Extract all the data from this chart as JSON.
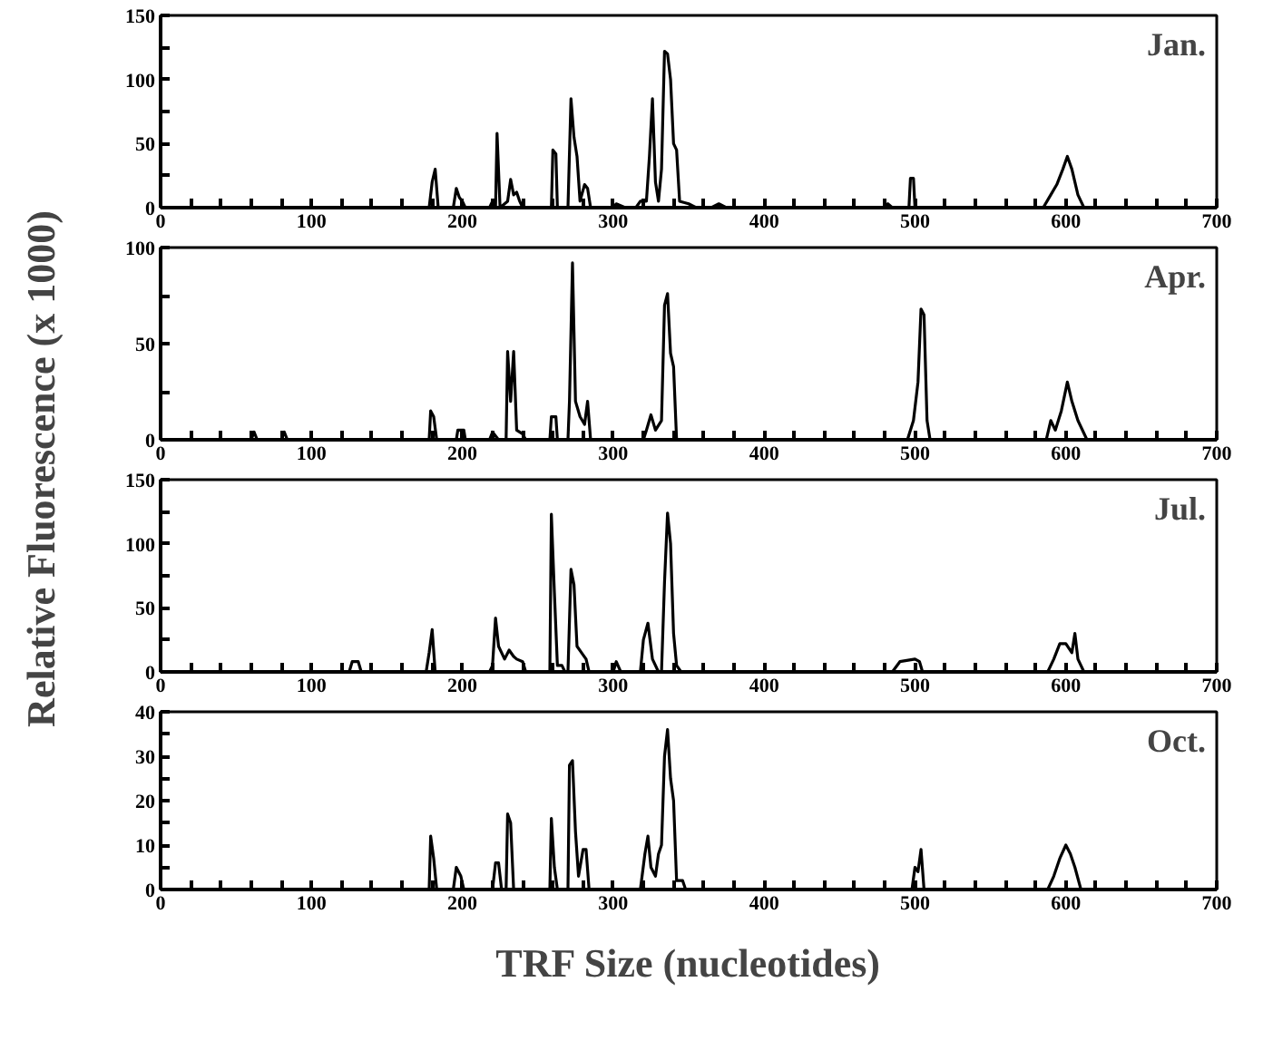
{
  "chart_data": [
    {
      "type": "line",
      "title": "Jan.",
      "ylabel": "Relative Fluorescence (x 1000)",
      "grid": false,
      "xlim": [
        0,
        700
      ],
      "ylim": [
        0,
        150
      ],
      "xticks": [
        0,
        {
          "value": 20,
          "label": null
        },
        {
          "value": 40,
          "label": null
        },
        {
          "value": 60,
          "label": null
        },
        {
          "value": 80,
          "label": null
        },
        100,
        {
          "value": 120,
          "label": null
        },
        {
          "value": 140,
          "label": null
        },
        {
          "value": 160,
          "label": null
        },
        {
          "value": 180,
          "label": null
        },
        200,
        {
          "value": 220,
          "label": null
        },
        {
          "value": 240,
          "label": null
        },
        {
          "value": 260,
          "label": null
        },
        {
          "value": 280,
          "label": null
        },
        300,
        {
          "value": 320,
          "label": null
        },
        {
          "value": 340,
          "label": null
        },
        {
          "value": 360,
          "label": null
        },
        {
          "value": 380,
          "label": null
        },
        400,
        {
          "value": 420,
          "label": null
        },
        {
          "value": 440,
          "label": null
        },
        {
          "value": 460,
          "label": null
        },
        {
          "value": 480,
          "label": null
        },
        500,
        {
          "value": 520,
          "label": null
        },
        {
          "value": 540,
          "label": null
        },
        {
          "value": 560,
          "label": null
        },
        {
          "value": 580,
          "label": null
        },
        600,
        {
          "value": 620,
          "label": null
        },
        {
          "value": 640,
          "label": null
        },
        {
          "value": 660,
          "label": null
        },
        {
          "value": 680,
          "label": null
        },
        700
      ],
      "yticks": [
        0,
        {
          "value": 25,
          "label": null
        },
        50,
        {
          "value": 75,
          "label": null
        },
        100,
        {
          "value": 125,
          "label": null
        },
        150
      ],
      "series": [
        {
          "color": "#000000",
          "x": [
            0,
            178,
            180,
            182,
            184,
            194,
            196,
            198,
            200,
            202,
            218,
            220,
            222,
            223,
            225,
            230,
            232,
            234,
            236,
            238,
            240,
            259,
            260,
            262,
            263,
            270,
            272,
            274,
            276,
            278,
            281,
            283,
            285,
            300,
            302,
            308,
            315,
            318,
            322,
            324,
            326,
            328,
            330,
            332,
            334,
            336,
            338,
            340,
            342,
            344,
            350,
            355,
            365,
            370,
            375,
            480,
            482,
            485,
            496,
            497,
            499,
            500,
            585,
            590,
            594,
            598,
            601,
            604,
            608,
            612,
            700
          ],
          "values": [
            0,
            0,
            20,
            30,
            0,
            0,
            15,
            8,
            5,
            0,
            0,
            5,
            0,
            58,
            0,
            5,
            22,
            10,
            12,
            5,
            0,
            0,
            45,
            42,
            0,
            0,
            85,
            55,
            40,
            5,
            18,
            15,
            0,
            0,
            3,
            0,
            0,
            5,
            5,
            40,
            85,
            20,
            5,
            30,
            122,
            120,
            100,
            50,
            45,
            5,
            3,
            0,
            0,
            3,
            0,
            0,
            3,
            0,
            0,
            23,
            23,
            0,
            0,
            10,
            18,
            30,
            40,
            30,
            10,
            0,
            0
          ]
        }
      ]
    },
    {
      "type": "line",
      "title": "Apr.",
      "grid": false,
      "xlim": [
        0,
        700
      ],
      "ylim": [
        0,
        100
      ],
      "xticks": [
        0,
        {
          "value": 20,
          "label": null
        },
        {
          "value": 40,
          "label": null
        },
        {
          "value": 60,
          "label": null
        },
        {
          "value": 80,
          "label": null
        },
        100,
        {
          "value": 120,
          "label": null
        },
        {
          "value": 140,
          "label": null
        },
        {
          "value": 160,
          "label": null
        },
        {
          "value": 180,
          "label": null
        },
        200,
        {
          "value": 220,
          "label": null
        },
        {
          "value": 240,
          "label": null
        },
        {
          "value": 260,
          "label": null
        },
        {
          "value": 280,
          "label": null
        },
        300,
        {
          "value": 320,
          "label": null
        },
        {
          "value": 340,
          "label": null
        },
        {
          "value": 360,
          "label": null
        },
        {
          "value": 380,
          "label": null
        },
        400,
        {
          "value": 420,
          "label": null
        },
        {
          "value": 440,
          "label": null
        },
        {
          "value": 460,
          "label": null
        },
        {
          "value": 480,
          "label": null
        },
        500,
        {
          "value": 520,
          "label": null
        },
        {
          "value": 540,
          "label": null
        },
        {
          "value": 560,
          "label": null
        },
        {
          "value": 580,
          "label": null
        },
        600,
        {
          "value": 620,
          "label": null
        },
        {
          "value": 640,
          "label": null
        },
        {
          "value": 660,
          "label": null
        },
        {
          "value": 680,
          "label": null
        },
        700
      ],
      "yticks": [
        0,
        {
          "value": 25,
          "label": null
        },
        50,
        {
          "value": 75,
          "label": null
        },
        100
      ],
      "series": [
        {
          "color": "#000000",
          "x": [
            0,
            60,
            62,
            64,
            80,
            82,
            84,
            178,
            179,
            181,
            183,
            196,
            197,
            201,
            202,
            218,
            220,
            224,
            229,
            230,
            232,
            234,
            236,
            240,
            242,
            258,
            259,
            262,
            263,
            270,
            271,
            273,
            275,
            278,
            281,
            283,
            285,
            320,
            322,
            325,
            328,
            332,
            334,
            336,
            338,
            340,
            342,
            495,
            499,
            502,
            504,
            506,
            508,
            510,
            587,
            590,
            593,
            597,
            601,
            604,
            608,
            614,
            700
          ],
          "values": [
            0,
            0,
            4,
            0,
            0,
            4,
            0,
            0,
            15,
            12,
            0,
            0,
            5,
            5,
            0,
            0,
            4,
            0,
            0,
            46,
            20,
            46,
            5,
            3,
            0,
            0,
            12,
            12,
            0,
            0,
            20,
            92,
            20,
            12,
            8,
            20,
            0,
            0,
            5,
            13,
            5,
            10,
            70,
            76,
            45,
            38,
            0,
            0,
            10,
            30,
            68,
            65,
            10,
            0,
            0,
            10,
            5,
            15,
            30,
            20,
            10,
            0,
            0
          ]
        }
      ]
    },
    {
      "type": "line",
      "title": "Jul.",
      "grid": false,
      "xlim": [
        0,
        700
      ],
      "ylim": [
        0,
        150
      ],
      "xticks": [
        0,
        {
          "value": 20,
          "label": null
        },
        {
          "value": 40,
          "label": null
        },
        {
          "value": 60,
          "label": null
        },
        {
          "value": 80,
          "label": null
        },
        100,
        {
          "value": 120,
          "label": null
        },
        {
          "value": 140,
          "label": null
        },
        {
          "value": 160,
          "label": null
        },
        {
          "value": 180,
          "label": null
        },
        200,
        {
          "value": 220,
          "label": null
        },
        {
          "value": 240,
          "label": null
        },
        {
          "value": 260,
          "label": null
        },
        {
          "value": 280,
          "label": null
        },
        300,
        {
          "value": 320,
          "label": null
        },
        {
          "value": 340,
          "label": null
        },
        {
          "value": 360,
          "label": null
        },
        {
          "value": 380,
          "label": null
        },
        400,
        {
          "value": 420,
          "label": null
        },
        {
          "value": 440,
          "label": null
        },
        {
          "value": 460,
          "label": null
        },
        {
          "value": 480,
          "label": null
        },
        500,
        {
          "value": 520,
          "label": null
        },
        {
          "value": 540,
          "label": null
        },
        {
          "value": 560,
          "label": null
        },
        {
          "value": 580,
          "label": null
        },
        600,
        {
          "value": 620,
          "label": null
        },
        {
          "value": 640,
          "label": null
        },
        {
          "value": 660,
          "label": null
        },
        {
          "value": 680,
          "label": null
        },
        700
      ],
      "yticks": [
        0,
        {
          "value": 25,
          "label": null
        },
        50,
        {
          "value": 75,
          "label": null
        },
        100,
        {
          "value": 125,
          "label": null
        },
        150
      ],
      "series": [
        {
          "color": "#000000",
          "x": [
            0,
            125,
            127,
            131,
            133,
            176,
            178,
            180,
            182,
            218,
            220,
            222,
            224,
            228,
            231,
            234,
            236,
            240,
            242,
            258,
            259,
            261,
            263,
            266,
            268,
            270,
            272,
            274,
            276,
            279,
            282,
            284,
            300,
            302,
            305,
            318,
            320,
            323,
            326,
            330,
            332,
            334,
            336,
            338,
            340,
            342,
            345,
            485,
            490,
            500,
            503,
            505,
            588,
            592,
            596,
            600,
            604,
            606,
            608,
            612,
            700
          ],
          "values": [
            0,
            0,
            8,
            8,
            0,
            0,
            15,
            33,
            0,
            0,
            5,
            42,
            20,
            10,
            17,
            12,
            10,
            8,
            0,
            0,
            123,
            62,
            5,
            5,
            0,
            0,
            80,
            68,
            20,
            15,
            10,
            0,
            0,
            8,
            0,
            0,
            25,
            38,
            10,
            0,
            0,
            70,
            124,
            100,
            30,
            5,
            0,
            0,
            8,
            10,
            8,
            0,
            0,
            10,
            22,
            22,
            15,
            30,
            10,
            0,
            0
          ]
        }
      ]
    },
    {
      "type": "line",
      "title": "Oct.",
      "xlabel": "TRF Size (nucleotides)",
      "grid": false,
      "xlim": [
        0,
        700
      ],
      "ylim": [
        0,
        40
      ],
      "xticks": [
        0,
        {
          "value": 20,
          "label": null
        },
        {
          "value": 40,
          "label": null
        },
        {
          "value": 60,
          "label": null
        },
        {
          "value": 80,
          "label": null
        },
        100,
        {
          "value": 120,
          "label": null
        },
        {
          "value": 140,
          "label": null
        },
        {
          "value": 160,
          "label": null
        },
        {
          "value": 180,
          "label": null
        },
        200,
        {
          "value": 220,
          "label": null
        },
        {
          "value": 240,
          "label": null
        },
        {
          "value": 260,
          "label": null
        },
        {
          "value": 280,
          "label": null
        },
        300,
        {
          "value": 320,
          "label": null
        },
        {
          "value": 340,
          "label": null
        },
        {
          "value": 360,
          "label": null
        },
        {
          "value": 380,
          "label": null
        },
        400,
        {
          "value": 420,
          "label": null
        },
        {
          "value": 440,
          "label": null
        },
        {
          "value": 460,
          "label": null
        },
        {
          "value": 480,
          "label": null
        },
        500,
        {
          "value": 520,
          "label": null
        },
        {
          "value": 540,
          "label": null
        },
        {
          "value": 560,
          "label": null
        },
        {
          "value": 580,
          "label": null
        },
        600,
        {
          "value": 620,
          "label": null
        },
        {
          "value": 640,
          "label": null
        },
        {
          "value": 660,
          "label": null
        },
        {
          "value": 680,
          "label": null
        },
        700
      ],
      "yticks": [
        0,
        {
          "value": 5,
          "label": null
        },
        10,
        {
          "value": 15,
          "label": null
        },
        20,
        {
          "value": 25,
          "label": null
        },
        30,
        {
          "value": 35,
          "label": null
        },
        40
      ],
      "series": [
        {
          "color": "#000000",
          "x": [
            0,
            178,
            179,
            181,
            183,
            194,
            196,
            199,
            201,
            220,
            222,
            224,
            226,
            229,
            230,
            232,
            234,
            258,
            259,
            261,
            263,
            270,
            271,
            273,
            275,
            277,
            280,
            282,
            284,
            318,
            321,
            323,
            325,
            328,
            330,
            332,
            334,
            336,
            338,
            340,
            342,
            346,
            348,
            498,
            500,
            502,
            504,
            506,
            588,
            592,
            596,
            600,
            603,
            606,
            610,
            700
          ],
          "values": [
            0,
            0,
            12,
            7,
            0,
            0,
            5,
            3,
            0,
            0,
            6,
            6,
            0,
            0,
            17,
            15,
            0,
            0,
            16,
            5,
            0,
            0,
            28,
            29,
            13,
            3,
            9,
            9,
            0,
            0,
            8,
            12,
            5,
            3,
            8,
            10,
            30,
            36,
            25,
            20,
            2,
            2,
            0,
            0,
            5,
            4,
            9,
            0,
            0,
            3,
            7,
            10,
            8,
            5,
            0,
            0
          ]
        }
      ]
    }
  ]
}
